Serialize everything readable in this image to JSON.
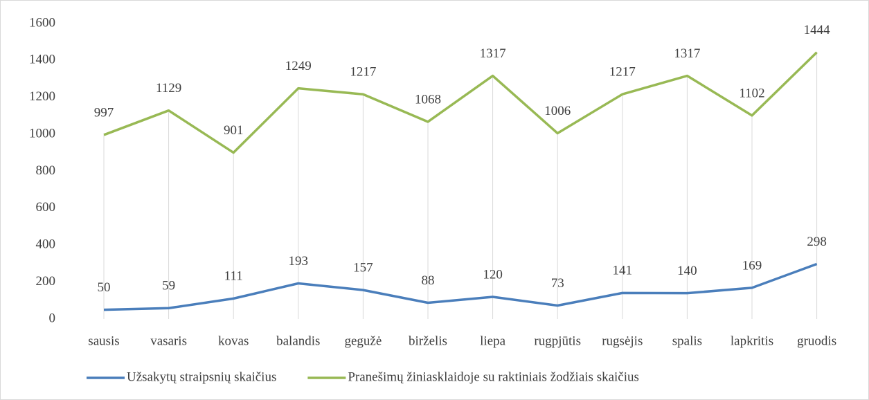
{
  "chart_data": {
    "type": "line",
    "categories": [
      "sausis",
      "vasaris",
      "kovas",
      "balandis",
      "gegužė",
      "birželis",
      "liepa",
      "rugpjūtis",
      "rugsėjis",
      "spalis",
      "lapkritis",
      "gruodis"
    ],
    "series": [
      {
        "name": "Užsakytų straipsnių skaičius",
        "color": "#4a7ebb",
        "values": [
          50,
          59,
          111,
          193,
          157,
          88,
          120,
          73,
          141,
          140,
          169,
          298
        ]
      },
      {
        "name": "Pranešimų žiniasklaidoje su raktiniais žodžiais skaičius",
        "color": "#98b954",
        "values": [
          997,
          1129,
          901,
          1249,
          1217,
          1068,
          1317,
          1006,
          1217,
          1317,
          1102,
          1444
        ]
      }
    ],
    "ylim": [
      0,
      1600
    ],
    "yticks": [
      0,
      200,
      400,
      600,
      800,
      1000,
      1200,
      1400,
      1600
    ],
    "data_labels": true,
    "drop_lines": true,
    "legend": "bottom"
  }
}
